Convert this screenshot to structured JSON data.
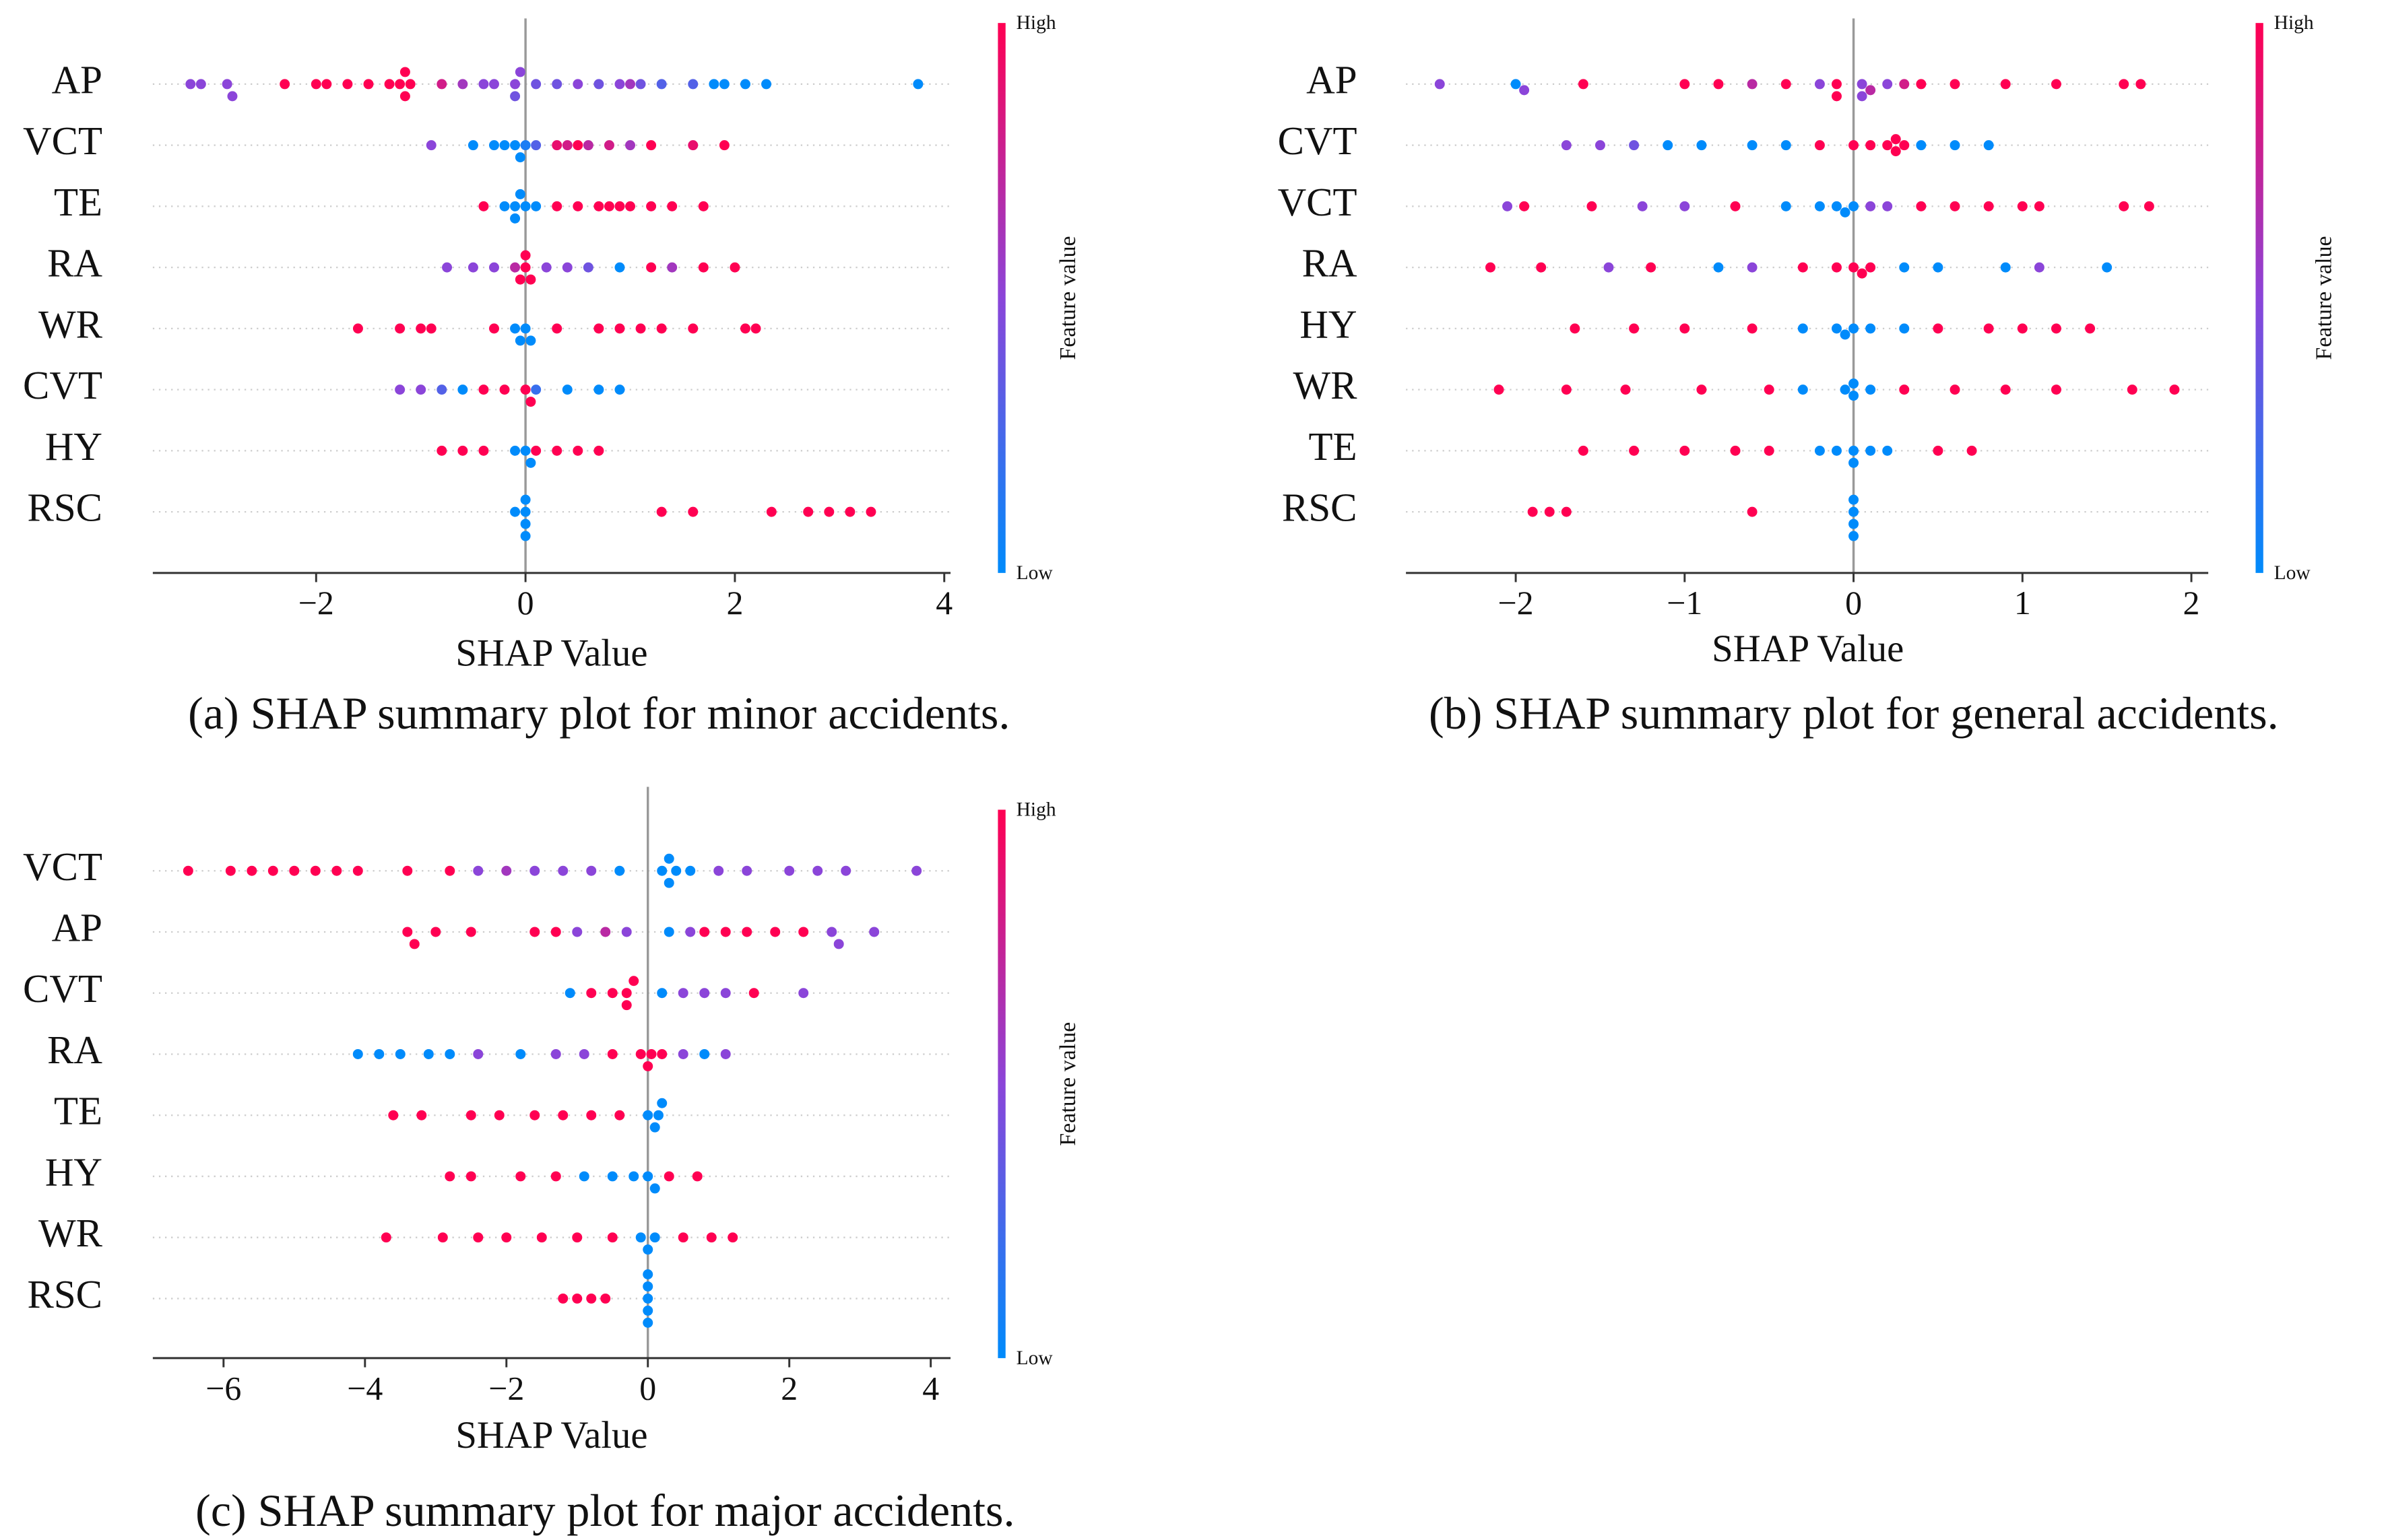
{
  "chart_data": [
    {
      "type": "scatter",
      "caption": "(a) SHAP summary plot for minor accidents.",
      "xlabel": "SHAP Value",
      "colorbar_label": "Feature value",
      "colorbar_high": "High",
      "colorbar_low": "Low",
      "colormap": [
        "#008bfb",
        "#8b45d9",
        "#ff0052"
      ],
      "xlim": [
        -3.56,
        4.06
      ],
      "xticks": [
        {
          "value": -2,
          "label": "−2"
        },
        0,
        2,
        4
      ],
      "series": [
        {
          "name": "AP",
          "values": [
            -3.2,
            -3.1,
            -2.85,
            -2.8,
            -2.3,
            -2.0,
            -1.9,
            -1.7,
            -1.5,
            -1.3,
            -1.2,
            -1.15,
            -1.15,
            -1.1,
            -0.8,
            -0.6,
            -0.4,
            -0.3,
            -0.1,
            -0.1,
            -0.05,
            0.1,
            0.3,
            0.5,
            0.7,
            0.9,
            1.0,
            1.1,
            1.3,
            1.6,
            1.8,
            1.9,
            2.1,
            2.3,
            3.75
          ],
          "feature_values": [
            0.5,
            0.5,
            0.5,
            0.5,
            1,
            1,
            1,
            1,
            1,
            1,
            1,
            1,
            1,
            1,
            0.8,
            0.6,
            0.5,
            0.5,
            0.5,
            0.4,
            0.5,
            0.4,
            0.4,
            0.5,
            0.4,
            0.5,
            0.6,
            0.4,
            0.3,
            0.3,
            0,
            0,
            0,
            0,
            0
          ]
        },
        {
          "name": "VCT",
          "values": [
            -0.9,
            -0.5,
            -0.3,
            -0.2,
            -0.1,
            -0.05,
            0,
            0.1,
            0.3,
            0.4,
            0.5,
            0.6,
            0.8,
            1.0,
            1.2,
            1.6,
            1.9
          ],
          "feature_values": [
            0.5,
            0,
            0,
            0,
            0,
            0,
            0.1,
            0.3,
            0.9,
            0.8,
            1,
            0.7,
            0.8,
            0.6,
            1,
            0.9,
            1
          ]
        },
        {
          "name": "TE",
          "values": [
            -0.4,
            -0.2,
            -0.1,
            -0.1,
            -0.05,
            0,
            0.1,
            0.3,
            0.5,
            0.7,
            0.8,
            0.9,
            1.0,
            1.2,
            1.4,
            1.7
          ],
          "feature_values": [
            1,
            0,
            0,
            0,
            0,
            0,
            0,
            1,
            1,
            1,
            1,
            1,
            1,
            1,
            1,
            1
          ]
        },
        {
          "name": "RA",
          "values": [
            -0.75,
            -0.5,
            -0.3,
            -0.1,
            -0.05,
            0,
            0,
            0.05,
            0.2,
            0.4,
            0.6,
            0.9,
            1.2,
            1.4,
            1.7,
            2.0
          ],
          "feature_values": [
            0.5,
            0.5,
            0.5,
            0.7,
            1,
            1,
            1,
            1,
            0.5,
            0.5,
            0.4,
            0,
            1,
            0.6,
            1,
            1
          ]
        },
        {
          "name": "WR",
          "values": [
            -1.6,
            -1.2,
            -1.0,
            -0.9,
            -0.3,
            -0.1,
            -0.05,
            0,
            0.05,
            0.3,
            0.7,
            0.9,
            1.1,
            1.3,
            1.6,
            2.1,
            2.2
          ],
          "feature_values": [
            1,
            1,
            1,
            1,
            1,
            0,
            0,
            0,
            0,
            1,
            1,
            1,
            1,
            1,
            1,
            1,
            1
          ]
        },
        {
          "name": "CVT",
          "values": [
            -1.2,
            -1.0,
            -0.8,
            -0.6,
            -0.4,
            -0.2,
            0.0,
            0.05,
            0.1,
            0.4,
            0.7,
            0.9
          ],
          "feature_values": [
            0.5,
            0.5,
            0.3,
            0,
            1,
            1,
            1,
            1,
            0.2,
            0,
            0,
            0
          ]
        },
        {
          "name": "HY",
          "values": [
            -0.8,
            -0.6,
            -0.4,
            -0.1,
            0,
            0.05,
            0.1,
            0.3,
            0.5,
            0.7
          ],
          "feature_values": [
            1,
            1,
            1,
            0,
            0,
            0,
            1,
            1,
            1,
            1
          ]
        },
        {
          "name": "RSC",
          "values": [
            -0.1,
            0,
            0,
            0,
            0,
            1.3,
            1.6,
            2.35,
            2.7,
            2.9,
            3.1,
            3.3
          ],
          "feature_values": [
            0,
            0,
            0,
            0,
            0,
            1,
            1,
            1,
            1,
            1,
            1,
            1
          ]
        }
      ]
    },
    {
      "type": "scatter",
      "caption": "(b) SHAP summary plot for general accidents.",
      "xlabel": "SHAP Value",
      "colorbar_label": "Feature value",
      "colorbar_high": "High",
      "colorbar_low": "Low",
      "colormap": [
        "#008bfb",
        "#8b45d9",
        "#ff0052"
      ],
      "xlim": [
        -2.65,
        2.1
      ],
      "xticks": [
        {
          "value": -2,
          "label": "−2"
        },
        {
          "value": -1,
          "label": "−1"
        },
        0,
        1,
        2
      ],
      "series": [
        {
          "name": "AP",
          "values": [
            -2.45,
            -2.0,
            -1.95,
            -1.6,
            -1.0,
            -0.8,
            -0.6,
            -0.4,
            -0.2,
            -0.1,
            -0.1,
            0.05,
            0.05,
            0.1,
            0.2,
            0.3,
            0.4,
            0.6,
            0.9,
            1.2,
            1.6,
            1.7
          ],
          "feature_values": [
            0.5,
            0,
            0.5,
            1,
            1,
            1,
            0.7,
            1,
            0.5,
            1,
            1,
            0.5,
            0.5,
            0.7,
            0.5,
            0.8,
            1,
            1,
            1,
            1,
            1,
            1
          ]
        },
        {
          "name": "CVT",
          "values": [
            -1.7,
            -1.5,
            -1.3,
            -1.1,
            -0.9,
            -0.6,
            -0.4,
            -0.2,
            0,
            0.1,
            0.2,
            0.25,
            0.25,
            0.3,
            0.4,
            0.6,
            0.8
          ],
          "feature_values": [
            0.5,
            0.5,
            0.4,
            0,
            0,
            0,
            0,
            1,
            1,
            1,
            1,
            1,
            1,
            1,
            0,
            0,
            0
          ]
        },
        {
          "name": "VCT",
          "values": [
            -2.05,
            -1.95,
            -1.55,
            -1.25,
            -1.0,
            -0.7,
            -0.4,
            -0.2,
            -0.1,
            -0.05,
            0,
            0.1,
            0.2,
            0.4,
            0.6,
            0.8,
            1.0,
            1.1,
            1.6,
            1.75
          ],
          "feature_values": [
            0.5,
            1,
            1,
            0.5,
            0.5,
            1,
            0,
            0,
            0,
            0,
            0,
            0.5,
            0.5,
            1,
            1,
            1,
            1,
            1,
            1,
            1
          ]
        },
        {
          "name": "RA",
          "values": [
            -2.15,
            -1.85,
            -1.45,
            -1.2,
            -0.8,
            -0.6,
            -0.3,
            -0.1,
            0,
            0.05,
            0.1,
            0.3,
            0.5,
            0.9,
            1.1,
            1.5
          ],
          "feature_values": [
            1,
            1,
            0.5,
            1,
            0,
            0.5,
            1,
            1,
            1,
            1,
            1,
            0,
            0,
            0,
            0.5,
            0
          ]
        },
        {
          "name": "HY",
          "values": [
            -1.65,
            -1.3,
            -1.0,
            -0.6,
            -0.3,
            -0.1,
            -0.05,
            0,
            0.1,
            0.3,
            0.5,
            0.8,
            1.0,
            1.2,
            1.4
          ],
          "feature_values": [
            1,
            1,
            1,
            1,
            0,
            0,
            0,
            0,
            0,
            0,
            1,
            1,
            1,
            1,
            1
          ]
        },
        {
          "name": "WR",
          "values": [
            -2.1,
            -1.7,
            -1.35,
            -0.9,
            -0.5,
            -0.3,
            -0.05,
            0,
            0,
            0.1,
            0.3,
            0.6,
            0.9,
            1.2,
            1.65,
            1.9
          ],
          "feature_values": [
            1,
            1,
            1,
            1,
            1,
            0,
            0,
            0,
            0,
            0,
            1,
            1,
            1,
            1,
            1,
            1
          ]
        },
        {
          "name": "TE",
          "values": [
            -1.6,
            -1.3,
            -1.0,
            -0.7,
            -0.5,
            -0.2,
            -0.1,
            0,
            0,
            0.1,
            0.2,
            0.5,
            0.7
          ],
          "feature_values": [
            1,
            1,
            1,
            1,
            1,
            0,
            0,
            0,
            0,
            0,
            0,
            1,
            1
          ]
        },
        {
          "name": "RSC",
          "values": [
            -1.9,
            -1.8,
            -1.7,
            -0.6,
            0,
            0,
            0,
            0
          ],
          "feature_values": [
            1,
            1,
            1,
            1,
            0,
            0,
            0,
            0
          ]
        }
      ]
    },
    {
      "type": "scatter",
      "caption": "(c) SHAP summary plot for major accidents.",
      "xlabel": "SHAP Value",
      "colorbar_label": "Feature value",
      "colorbar_high": "High",
      "colorbar_low": "Low",
      "colormap": [
        "#008bfb",
        "#8b45d9",
        "#ff0052"
      ],
      "xlim": [
        -7.0,
        4.28
      ],
      "xticks": [
        {
          "value": -6,
          "label": "−6"
        },
        {
          "value": -4,
          "label": "−4"
        },
        {
          "value": -2,
          "label": "−2"
        },
        0,
        2,
        4
      ],
      "series": [
        {
          "name": "VCT",
          "values": [
            -6.5,
            -5.9,
            -5.6,
            -5.3,
            -5.0,
            -4.7,
            -4.4,
            -4.1,
            -3.4,
            -2.8,
            -2.4,
            -2.0,
            -1.6,
            -1.2,
            -0.8,
            -0.4,
            0.2,
            0.3,
            0.3,
            0.4,
            0.6,
            1.0,
            1.4,
            2.0,
            2.4,
            2.8,
            3.8
          ],
          "feature_values": [
            1,
            1,
            1,
            1,
            1,
            1,
            1,
            1,
            1,
            1,
            0.5,
            0.6,
            0.5,
            0.5,
            0.5,
            0,
            0,
            0,
            0,
            0,
            0,
            0.5,
            0.5,
            0.5,
            0.5,
            0.5,
            0.5
          ]
        },
        {
          "name": "AP",
          "values": [
            -3.4,
            -3.3,
            -3.0,
            -2.5,
            -1.6,
            -1.3,
            -1.0,
            -0.6,
            -0.3,
            0.3,
            0.6,
            0.8,
            1.1,
            1.4,
            1.8,
            2.2,
            2.6,
            2.7,
            3.2
          ],
          "feature_values": [
            1,
            1,
            1,
            1,
            1,
            1,
            0.5,
            0.7,
            0.5,
            0,
            0.5,
            1,
            1,
            1,
            1,
            1,
            0.5,
            0.5,
            0.5
          ]
        },
        {
          "name": "CVT",
          "values": [
            -1.1,
            -0.8,
            -0.5,
            -0.3,
            -0.3,
            -0.2,
            0.2,
            0.5,
            0.8,
            1.1,
            1.5,
            2.2
          ],
          "feature_values": [
            0,
            1,
            1,
            1,
            1,
            1,
            0,
            0.5,
            0.5,
            0.5,
            1,
            0.5
          ]
        },
        {
          "name": "RA",
          "values": [
            -4.1,
            -3.8,
            -3.5,
            -3.1,
            -2.8,
            -2.4,
            -1.8,
            -1.3,
            -0.9,
            -0.5,
            -0.1,
            0,
            0.05,
            0.2,
            0.5,
            0.8,
            1.1
          ],
          "feature_values": [
            0,
            0,
            0,
            0,
            0,
            0.5,
            0,
            0.5,
            0.5,
            1,
            1,
            1,
            1,
            1,
            0.5,
            0,
            0.5
          ]
        },
        {
          "name": "TE",
          "values": [
            -3.6,
            -3.2,
            -2.5,
            -2.1,
            -1.6,
            -1.2,
            -0.8,
            -0.4,
            0,
            0.1,
            0.15,
            0.2
          ],
          "feature_values": [
            1,
            1,
            1,
            1,
            1,
            1,
            1,
            1,
            0,
            0,
            0,
            0
          ]
        },
        {
          "name": "HY",
          "values": [
            -2.8,
            -2.5,
            -1.8,
            -1.3,
            -0.9,
            -0.5,
            -0.2,
            0,
            0.1,
            0.3,
            0.7
          ],
          "feature_values": [
            1,
            1,
            1,
            1,
            0,
            0,
            0,
            0,
            0,
            1,
            1
          ]
        },
        {
          "name": "WR",
          "values": [
            -3.7,
            -2.9,
            -2.4,
            -2.0,
            -1.5,
            -1.0,
            -0.5,
            -0.1,
            0,
            0.1,
            0.5,
            0.9,
            1.2
          ],
          "feature_values": [
            1,
            1,
            1,
            1,
            1,
            1,
            1,
            0,
            0,
            0,
            1,
            1,
            1
          ]
        },
        {
          "name": "RSC",
          "values": [
            -1.2,
            -1.0,
            -0.8,
            -0.6,
            0,
            0,
            0,
            0,
            0
          ],
          "feature_values": [
            1,
            1,
            1,
            1,
            0,
            0,
            0,
            0,
            0
          ]
        }
      ]
    }
  ]
}
